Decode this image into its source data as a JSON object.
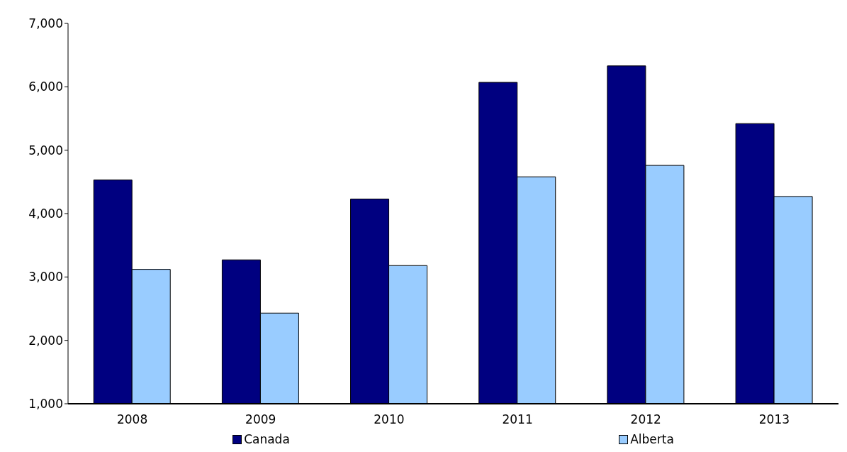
{
  "chart_data": {
    "type": "bar",
    "categories": [
      "2008",
      "2009",
      "2010",
      "2011",
      "2012",
      "2013"
    ],
    "series": [
      {
        "name": "Canada",
        "color": "#000080",
        "values": [
          4530,
          3270,
          4230,
          6070,
          6330,
          5420
        ]
      },
      {
        "name": "Alberta",
        "color": "#99ccff",
        "values": [
          3120,
          2430,
          3180,
          4580,
          4760,
          4270
        ]
      }
    ],
    "ylim": [
      1000,
      7000
    ],
    "yticks": [
      {
        "value": 1000,
        "label": "1,000"
      },
      {
        "value": 2000,
        "label": "2,000"
      },
      {
        "value": 3000,
        "label": "3,000"
      },
      {
        "value": 4000,
        "label": "4,000"
      },
      {
        "value": 5000,
        "label": "5,000"
      },
      {
        "value": 6000,
        "label": "6,000"
      },
      {
        "value": 7000,
        "label": "7,000"
      }
    ],
    "grid": false,
    "legend": "bottom"
  }
}
